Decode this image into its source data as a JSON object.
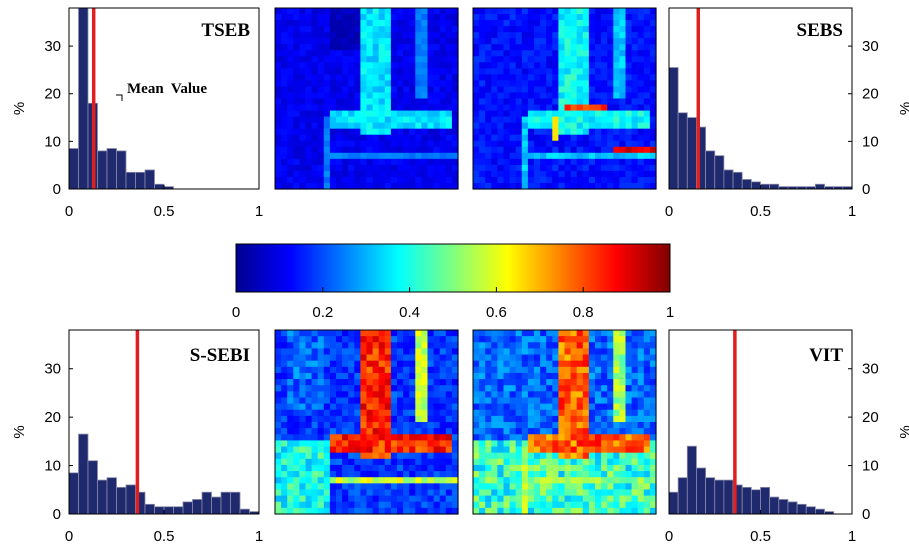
{
  "colors": {
    "bar_fill": "#1f2a6e",
    "bar_stroke": "#8a8aa8",
    "mean_line": "#e02020",
    "colormap": [
      "#00008f",
      "#0000ff",
      "#0080ff",
      "#00ffff",
      "#80ff80",
      "#ffff00",
      "#ff8000",
      "#ff0000",
      "#800000"
    ]
  },
  "annotation": {
    "mean_value": "Mean  Value"
  },
  "colorbar": {
    "ticks": [
      0,
      0.2,
      0.4,
      0.6,
      0.8,
      1
    ],
    "tick_labels": [
      "0",
      "0.2",
      "0.4",
      "0.6",
      "0.8",
      "1"
    ]
  },
  "maps": [
    {
      "id": "map-top-1",
      "description_levels": "low",
      "style": "tseb"
    },
    {
      "id": "map-top-2",
      "style": "sebs"
    },
    {
      "id": "map-bottom-1",
      "style": "ssebi"
    },
    {
      "id": "map-bottom-2",
      "style": "vit"
    }
  ],
  "chart_data": [
    {
      "type": "bar",
      "title": "TSEB",
      "ylabel": "%",
      "y_axis_side": "left",
      "xlim": [
        0,
        1
      ],
      "ylim": [
        0,
        38
      ],
      "xticks": [
        "0",
        "0.5",
        "1"
      ],
      "yticks": [
        "0",
        "10",
        "20",
        "30"
      ],
      "bin_width": 0.05,
      "x": [
        0.025,
        0.075,
        0.125,
        0.175,
        0.225,
        0.275,
        0.325,
        0.375,
        0.425,
        0.475,
        0.525,
        0.575
      ],
      "values": [
        8.5,
        38,
        18,
        8,
        8.5,
        8,
        3.5,
        3.5,
        4,
        1,
        0.5,
        0
      ],
      "mean": 0.13
    },
    {
      "type": "bar",
      "title": "SEBS",
      "ylabel": "%",
      "y_axis_side": "right",
      "xlim": [
        0,
        1
      ],
      "ylim": [
        0,
        38
      ],
      "xticks": [
        "0",
        "0.5",
        "1"
      ],
      "yticks": [
        "0",
        "10",
        "20",
        "30"
      ],
      "bin_width": 0.05,
      "x": [
        0.025,
        0.075,
        0.125,
        0.175,
        0.225,
        0.275,
        0.325,
        0.375,
        0.425,
        0.475,
        0.525,
        0.575,
        0.625,
        0.675,
        0.725,
        0.775,
        0.825,
        0.875,
        0.925,
        0.975
      ],
      "values": [
        25.5,
        16,
        15,
        13,
        8,
        7,
        4,
        3.5,
        2,
        1.5,
        1,
        1,
        0.5,
        0.5,
        0.5,
        0.5,
        1,
        0.5,
        0.5,
        0.5
      ],
      "mean": 0.16
    },
    {
      "type": "bar",
      "title": "S-SEBI",
      "ylabel": "%",
      "y_axis_side": "left",
      "xlim": [
        0,
        1
      ],
      "ylim": [
        0,
        38
      ],
      "xticks": [
        "0",
        "0.5",
        "1"
      ],
      "yticks": [
        "0",
        "10",
        "20",
        "30"
      ],
      "bin_width": 0.05,
      "x": [
        0.025,
        0.075,
        0.125,
        0.175,
        0.225,
        0.275,
        0.325,
        0.375,
        0.425,
        0.475,
        0.525,
        0.575,
        0.625,
        0.675,
        0.725,
        0.775,
        0.825,
        0.875,
        0.925,
        0.975
      ],
      "values": [
        8.5,
        16.5,
        11,
        7,
        7.5,
        5.5,
        6,
        4.5,
        2,
        1.5,
        1.5,
        1.5,
        2.5,
        3,
        4.5,
        3.5,
        4.5,
        4.5,
        1,
        0.5
      ],
      "mean": 0.36
    },
    {
      "type": "bar",
      "title": "VIT",
      "ylabel": "%",
      "y_axis_side": "right",
      "xlim": [
        0,
        1
      ],
      "ylim": [
        0,
        38
      ],
      "xticks": [
        "0",
        "0.5",
        "1"
      ],
      "yticks": [
        "0",
        "10",
        "20",
        "30"
      ],
      "bin_width": 0.05,
      "x": [
        0.025,
        0.075,
        0.125,
        0.175,
        0.225,
        0.275,
        0.325,
        0.375,
        0.425,
        0.475,
        0.525,
        0.575,
        0.625,
        0.675,
        0.725,
        0.775,
        0.825,
        0.875,
        0.925,
        0.975
      ],
      "values": [
        4.5,
        7.5,
        14,
        9.5,
        7.5,
        7,
        7,
        6,
        5.5,
        5,
        5.5,
        3.5,
        3,
        2.5,
        2,
        1.5,
        1,
        0.5,
        0,
        0
      ],
      "mean": 0.36
    }
  ]
}
